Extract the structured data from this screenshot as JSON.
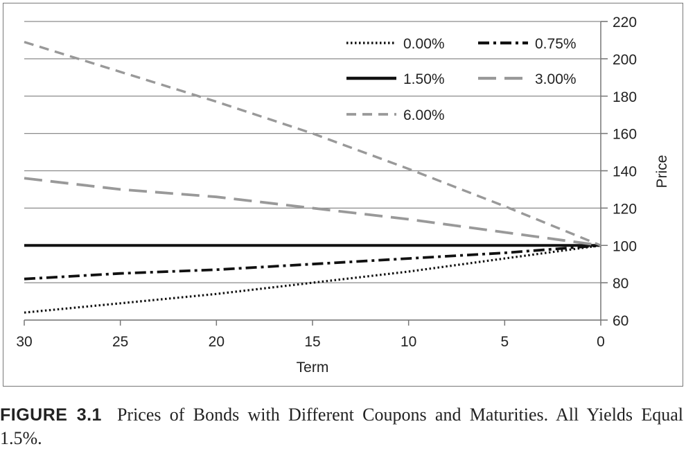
{
  "chart_data": {
    "type": "line",
    "xlabel": "Term",
    "ylabel": "Price",
    "xlim": [
      30,
      0
    ],
    "ylim": [
      60,
      220
    ],
    "x_ticks": [
      30,
      25,
      20,
      15,
      10,
      5,
      0
    ],
    "y_ticks": [
      60,
      80,
      100,
      120,
      140,
      160,
      180,
      200,
      220
    ],
    "y_axis_side": "right",
    "grid": "horizontal",
    "legend_position": "top-right",
    "series": [
      {
        "name": "0.00%",
        "style": "dotted",
        "color": "#111111",
        "x": [
          30,
          25,
          20,
          15,
          10,
          5,
          0
        ],
        "y": [
          64,
          69,
          74,
          80,
          86,
          93,
          100
        ]
      },
      {
        "name": "0.75%",
        "style": "dash-dot",
        "color": "#111111",
        "x": [
          30,
          25,
          20,
          15,
          10,
          5,
          0
        ],
        "y": [
          82,
          85,
          87,
          90,
          93,
          96,
          100
        ]
      },
      {
        "name": "1.50%",
        "style": "solid",
        "color": "#111111",
        "x": [
          30,
          0
        ],
        "y": [
          100,
          100
        ]
      },
      {
        "name": "3.00%",
        "style": "long-dash",
        "color": "#999999",
        "x": [
          30,
          25,
          20,
          15,
          10,
          5,
          0
        ],
        "y": [
          136,
          130,
          126,
          120,
          114,
          107,
          100
        ]
      },
      {
        "name": "6.00%",
        "style": "dashed",
        "color": "#999999",
        "x": [
          30,
          25,
          20,
          15,
          10,
          5,
          0
        ],
        "y": [
          209,
          193,
          177,
          160,
          141,
          121,
          100
        ]
      }
    ]
  },
  "caption": {
    "label": "FIGURE 3.1",
    "text": "Prices of Bonds with Different Coupons and Maturities. All Yields Equal 1.5%."
  }
}
